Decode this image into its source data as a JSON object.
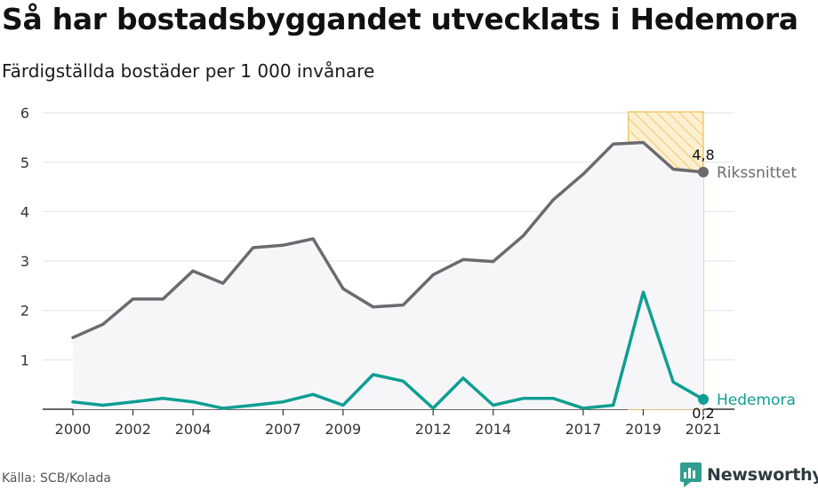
{
  "header": {
    "title": "Så har bostadsbyggandet utvecklats i Hedemora",
    "subtitle": "Färdigställda bostäder per 1 000 invånare"
  },
  "footer": {
    "source": "Källa: SCB/Kolada",
    "brand": "Newsworthy",
    "brand_icon": "newsworthy-chart-logo-icon"
  },
  "chart_data": {
    "type": "line",
    "x": [
      2000,
      2001,
      2002,
      2003,
      2004,
      2005,
      2006,
      2007,
      2008,
      2009,
      2010,
      2011,
      2012,
      2013,
      2014,
      2015,
      2016,
      2017,
      2018,
      2019,
      2020,
      2021
    ],
    "x_tick_labels": [
      "2000",
      "2002",
      "2004",
      "2007",
      "2009",
      "2012",
      "2014",
      "2017",
      "2019",
      "2021"
    ],
    "y_tick_labels": [
      "1",
      "2",
      "3",
      "4",
      "5",
      "6"
    ],
    "ylim": [
      0,
      6.2
    ],
    "grid": true,
    "highlight_range": [
      2018.5,
      2021
    ],
    "colors": {
      "riket": "#6b6b6f",
      "hedemora": "#0f9e92",
      "highlight_fill": "#fbe6b8",
      "highlight_stroke": "#f0c869",
      "area": "#f6f6f8",
      "grid": "#e3e3e3"
    },
    "series": [
      {
        "name": "Rikssnittet",
        "key": "riket",
        "values": [
          1.45,
          1.72,
          2.23,
          2.23,
          2.8,
          2.55,
          3.27,
          3.32,
          3.45,
          2.44,
          2.07,
          2.11,
          2.72,
          3.03,
          2.99,
          3.51,
          4.24,
          4.76,
          5.37,
          5.4,
          4.86,
          4.8
        ],
        "end_label": "4,8"
      },
      {
        "name": "Hedemora",
        "key": "hedemora",
        "values": [
          0.15,
          0.08,
          0.15,
          0.22,
          0.15,
          0.02,
          0.08,
          0.15,
          0.3,
          0.08,
          0.7,
          0.57,
          0.02,
          0.63,
          0.08,
          0.22,
          0.22,
          0.02,
          0.08,
          2.37,
          0.55,
          0.2
        ],
        "end_label": "0,2"
      }
    ]
  }
}
